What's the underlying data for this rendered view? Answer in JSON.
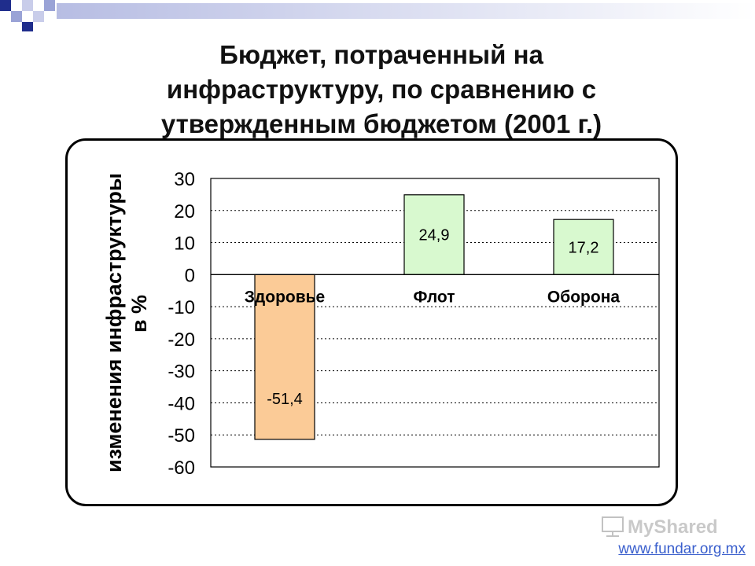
{
  "slide": {
    "title_lines": [
      "Бюджет, потраченный на",
      "инфраструктуру, по сравнению с",
      "утвержденным бюджетом (2001 г.)"
    ],
    "source_link": "www.fundar.org.mx",
    "watermark_text": "MyShared"
  },
  "colors": {
    "deco_squares": "#1f2d8c",
    "deco_light": "#9aa3d6",
    "negative_bar": "#fbcb97",
    "positive_bar": "#d8f9cf",
    "bar_border": "#000000"
  },
  "chart_data": {
    "type": "bar",
    "title": "",
    "ylabel_lines": [
      "изменения инфраструктуры",
      "в %"
    ],
    "xlabel": "",
    "categories": [
      "Здоровье",
      "Флот",
      "Оборона"
    ],
    "values": [
      -51.4,
      24.9,
      17.2
    ],
    "value_labels": [
      "-51,4",
      "24,9",
      "17,2"
    ],
    "ylim": [
      -60,
      30
    ],
    "yticks": [
      30,
      20,
      10,
      0,
      -10,
      -20,
      -30,
      -40,
      -50,
      -60
    ],
    "grid": "horizontal dotted",
    "legend": "none"
  }
}
